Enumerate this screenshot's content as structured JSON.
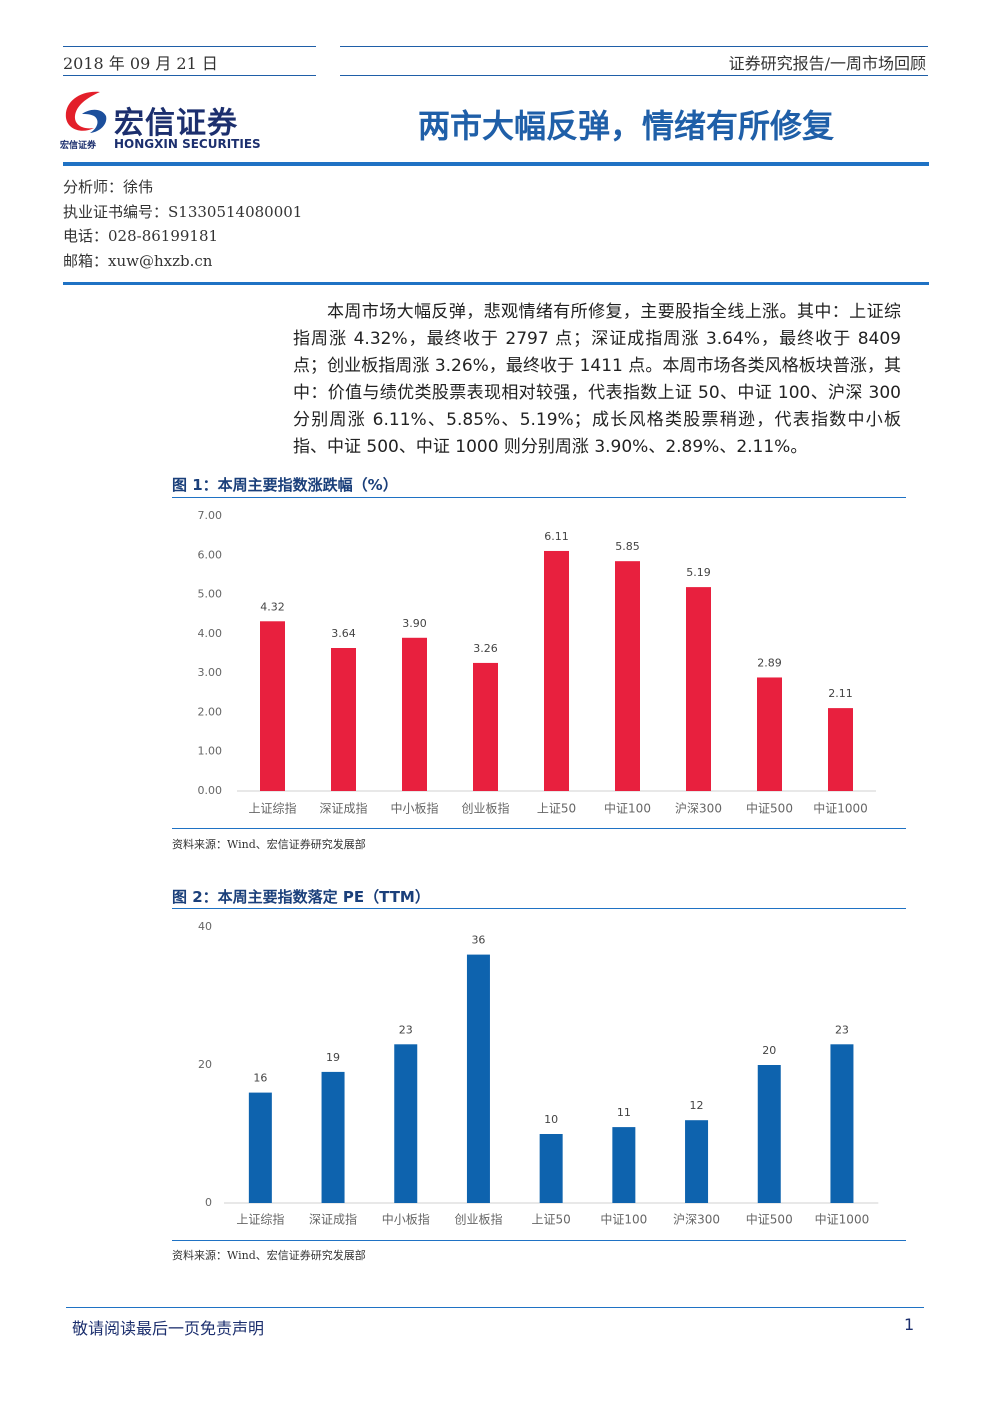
{
  "header": {
    "date": "2018 年 09 月 21 日",
    "report_type": "证券研究报告/一周市场回顾"
  },
  "logo": {
    "name": "宏信证券",
    "small_name": "宏信证券",
    "english": "HONGXIN SECURITIES"
  },
  "title": "两市大幅反弹，情绪有所修复",
  "analyst": [
    "分析师：徐伟",
    "执业证书编号：S1330514080001",
    "电话：028-86199181",
    "邮箱：xuw@hxzb.cn"
  ],
  "summary": "本周市场大幅反弹，悲观情绪有所修复，主要股指全线上涨。其中：上证综指周涨 4.32%，最终收于 2797 点；深证成指周涨 3.64%，最终收于 8409 点；创业板指周涨 3.26%，最终收于 1411 点。本周市场各类风格板块普涨，其中：价值与绩优类股票表现相对较强，代表指数上证 50、中证 100、沪深 300 分别周涨 6.11%、5.85%、5.19%；成长风格类股票稍逊，代表指数中小板指、中证 500、中证 1000 则分别周涨 3.90%、2.89%、2.11%。",
  "figures": [
    {
      "title": "图 1：本周主要指数涨跌幅（%）",
      "chart_data": {
        "type": "bar",
        "categories": [
          "上证综指",
          "深证成指",
          "中小板指",
          "创业板指",
          "上证50",
          "中证100",
          "沪深300",
          "中证500",
          "中证1000"
        ],
        "values": [
          4.32,
          3.64,
          3.9,
          3.26,
          6.11,
          5.85,
          5.19,
          2.89,
          2.11
        ],
        "value_labels": [
          "4.32",
          "3.64",
          "3.90",
          "3.26",
          "6.11",
          "5.85",
          "5.19",
          "2.89",
          "2.11"
        ],
        "color": "#e8203e",
        "ylim": [
          0,
          7
        ],
        "yticks": [
          {
            "value": 0,
            "label": "0.00"
          },
          {
            "value": 1,
            "label": "1.00"
          },
          {
            "value": 2,
            "label": "2.00"
          },
          {
            "value": 3,
            "label": "3.00"
          },
          {
            "value": 4,
            "label": "4.00"
          },
          {
            "value": 5,
            "label": "5.00"
          },
          {
            "value": 6,
            "label": "6.00"
          },
          {
            "value": 7,
            "label": "7.00"
          }
        ],
        "grid": false
      },
      "source": "资料来源：Wind、宏信证券研究发展部"
    },
    {
      "title": "图 2：本周主要指数落定 PE（TTM）",
      "chart_data": {
        "type": "bar",
        "categories": [
          "上证综指",
          "深证成指",
          "中小板指",
          "创业板指",
          "上证50",
          "中证100",
          "沪深300",
          "中证500",
          "中证1000"
        ],
        "values": [
          16,
          19,
          23,
          36,
          10,
          11,
          12,
          20,
          23
        ],
        "color": "#0e63ae",
        "ylim": [
          0,
          40
        ],
        "yticks": [
          0,
          20,
          40
        ],
        "grid": false
      },
      "source": "资料来源：Wind、宏信证券研究发展部"
    }
  ],
  "footer": {
    "disclaimer": "敬请阅读最后一页免责声明",
    "page": "1"
  }
}
